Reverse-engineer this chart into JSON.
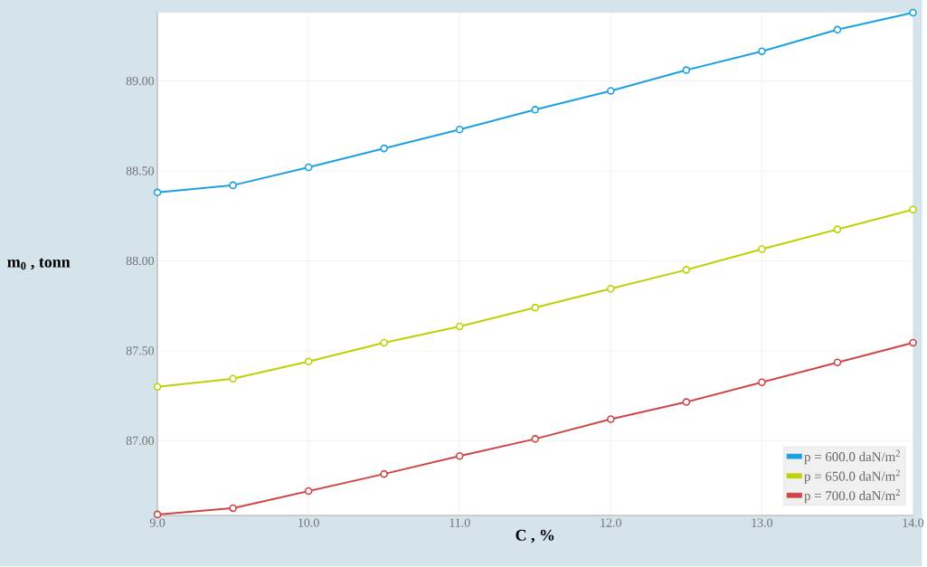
{
  "chart_data": {
    "type": "line",
    "xlabel": "C , %",
    "ylabel": "m$_{0}$ , tonn",
    "x": [
      9.0,
      9.5,
      10.0,
      10.5,
      11.0,
      11.5,
      12.0,
      12.5,
      13.0,
      13.5,
      14.0
    ],
    "series": [
      {
        "name": "p = 600.0 daN/m$^{2}$",
        "color": "#1ba1e2",
        "values": [
          88.38,
          88.42,
          88.52,
          88.625,
          88.73,
          88.84,
          88.945,
          89.06,
          89.165,
          89.285,
          89.38
        ]
      },
      {
        "name": "p = 650.0 daN/m$^{2}$",
        "color": "#bcd200",
        "values": [
          87.3,
          87.345,
          87.44,
          87.545,
          87.635,
          87.74,
          87.845,
          87.95,
          88.065,
          88.175,
          88.285
        ]
      },
      {
        "name": "p = 700.0 daN/m$^{2}$",
        "color": "#cf4444",
        "values": [
          86.59,
          86.625,
          86.72,
          86.815,
          86.915,
          87.01,
          87.12,
          87.215,
          87.325,
          87.435,
          87.545
        ]
      }
    ],
    "xlim": [
      9.0,
      14.0
    ],
    "ylim": [
      86.585,
      89.38
    ],
    "xticks": [
      {
        "value": 9,
        "label": "9.0"
      },
      {
        "value": 10,
        "label": "10.0"
      },
      {
        "value": 11,
        "label": "11.0"
      },
      {
        "value": 12,
        "label": "12.0"
      },
      {
        "value": 13,
        "label": "13.0"
      },
      {
        "value": 14,
        "label": "14.0"
      }
    ],
    "yticks": [
      {
        "value": 87,
        "label": "87.00"
      },
      {
        "value": 87.5,
        "label": "87.50"
      },
      {
        "value": 88,
        "label": "88.00"
      },
      {
        "value": 88.5,
        "label": "88.50"
      },
      {
        "value": 89,
        "label": "89.00"
      }
    ],
    "grid": true,
    "legend": "bottom right",
    "marker": "circle"
  }
}
